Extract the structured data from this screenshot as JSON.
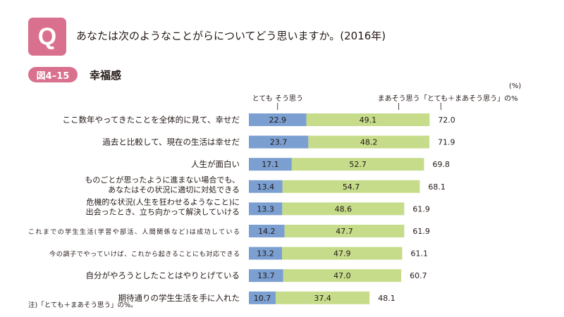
{
  "header": {
    "badge": "Q",
    "question": "あなたは次のようなことがらについてどう思いますか。(2016年)"
  },
  "figure": {
    "label": "図4–15",
    "title": "幸福感",
    "unit": "(%)",
    "note": "注)「とても＋まあそう思う」の%。"
  },
  "colors": {
    "accent": "#d9708d",
    "strongly_agree": "#7a9fd0",
    "somewhat_agree": "#c6dc8a",
    "grid": "#dfe8d2"
  },
  "chart_data": {
    "type": "bar",
    "orientation": "horizontal",
    "stacked": true,
    "legend": [
      "とても そう思う",
      "まあそう思う",
      "「とても＋まあそう思う」の%"
    ],
    "categories": [
      [
        "ここ数年やってきたことを全体的に見て、幸せだ"
      ],
      [
        "過去と比較して、現在の生活は幸せだ"
      ],
      [
        "人生が面白い"
      ],
      [
        "ものごとが思ったように進まない場合でも、",
        "あなたはその状況に適切に対処できる"
      ],
      [
        "危機的な状況(人生を狂わせるようなこと)に",
        "出会ったとき、立ち向かって解決していける"
      ],
      [
        "これまでの学生生活(学習や部活、人間関係など)は成功している"
      ],
      [
        "今の調子でやっていけば、これから起きることにも対応できる"
      ],
      [
        "自分がやろうとしたことはやりとげている"
      ],
      [
        "期待通りの学生生活を手に入れた"
      ]
    ],
    "series": [
      {
        "name": "とても そう思う",
        "values": [
          22.9,
          23.7,
          17.1,
          13.4,
          13.3,
          14.2,
          13.2,
          13.7,
          10.7
        ]
      },
      {
        "name": "まあそう思う",
        "values": [
          49.1,
          48.2,
          52.7,
          54.7,
          48.6,
          47.7,
          47.9,
          47.0,
          37.4
        ]
      }
    ],
    "totals": [
      "72.0",
      "71.9",
      "69.8",
      "68.1",
      "61.9",
      "61.9",
      "61.1",
      "60.7",
      "48.1"
    ]
  }
}
